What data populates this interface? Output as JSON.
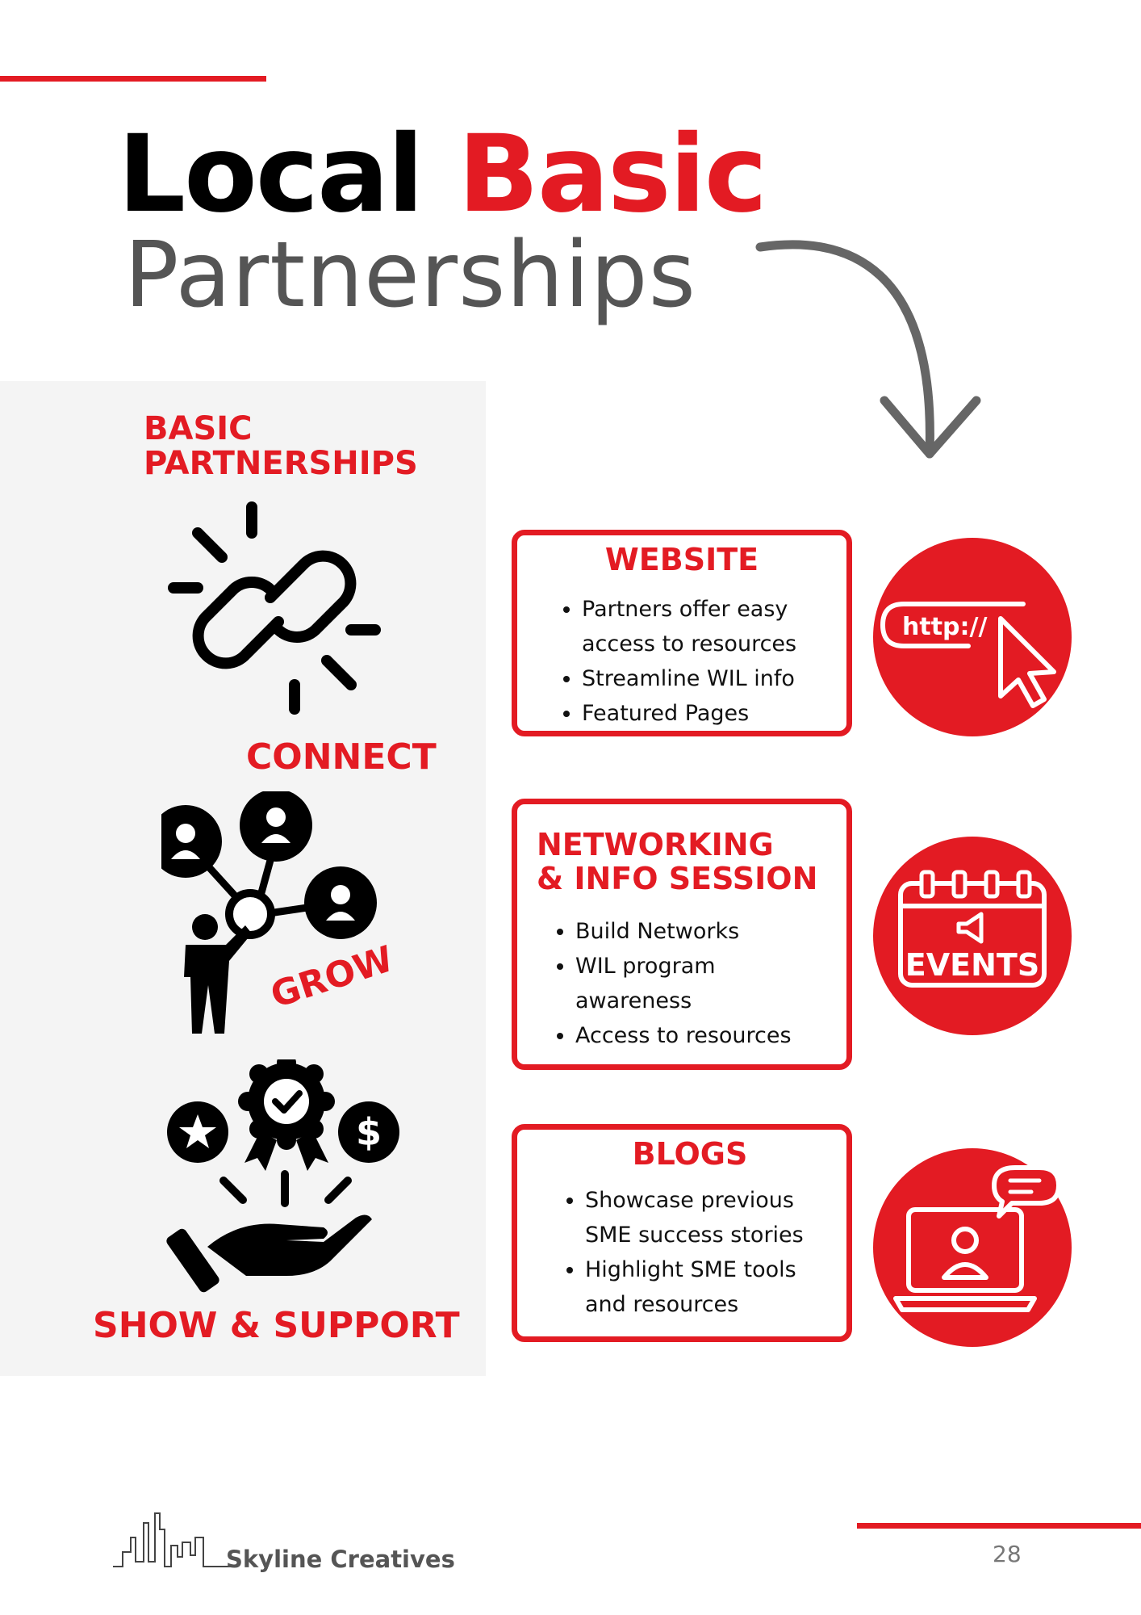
{
  "title": {
    "line1_word1": "Local",
    "line1_word2": "Basic",
    "line2": "Partnerships"
  },
  "panel": {
    "heading_line1": "BASIC",
    "heading_line2": "PARTNERSHIPS",
    "labels": {
      "connect": "CONNECT",
      "grow": "GROW",
      "show_support": "SHOW & SUPPORT"
    }
  },
  "cards": [
    {
      "title_lines": [
        "WEBSITE"
      ],
      "bullets": [
        "Partners offer easy access to resources",
        "Streamline WIL info",
        "Featured Pages"
      ]
    },
    {
      "title_lines": [
        "NETWORKING",
        "& INFO SESSION"
      ],
      "bullets": [
        "Build Networks",
        "WIL program awareness",
        "Access to resources"
      ]
    },
    {
      "title_lines": [
        "BLOGS"
      ],
      "bullets": [
        "Showcase previous SME success stories",
        "Highlight SME tools and resources"
      ]
    }
  ],
  "badges": {
    "website_text": "http://",
    "events_text": "EVENTS"
  },
  "footer": {
    "brand": "Skyline Creatives",
    "page_number": "28"
  },
  "colors": {
    "accent": "#e31b23",
    "panel_bg": "#f4f4f4",
    "subtitle_gray": "#555555"
  }
}
